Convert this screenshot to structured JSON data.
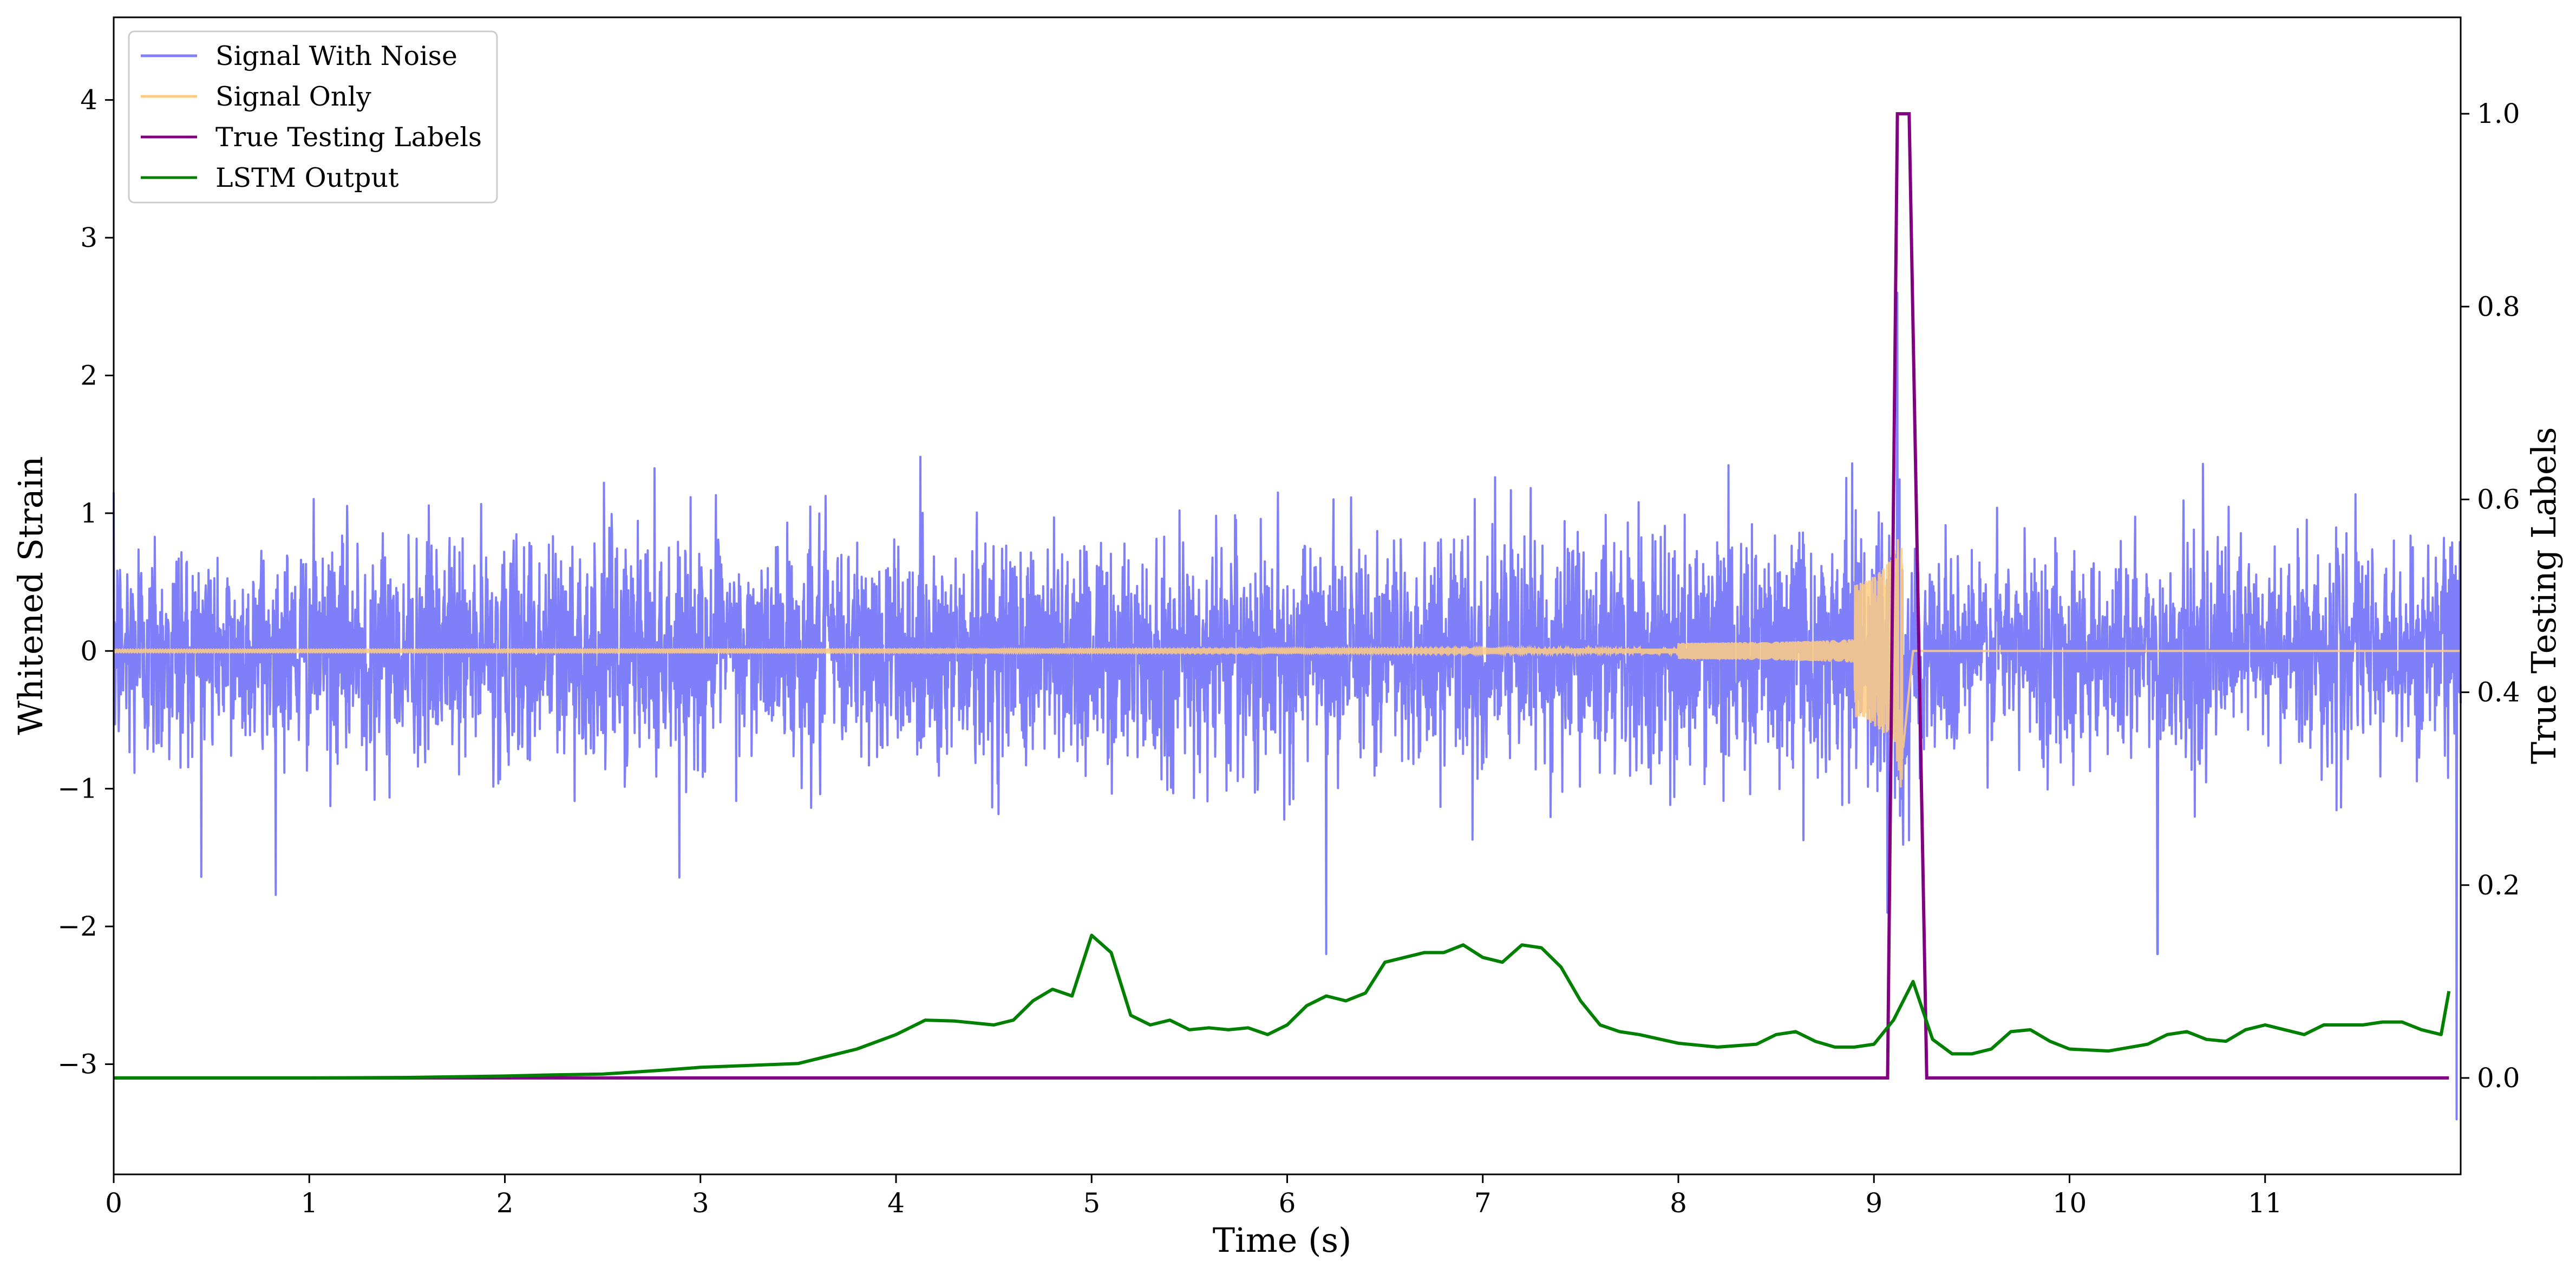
{
  "chart_data": {
    "type": "line",
    "title": "",
    "xlabel": "Time (s)",
    "ylabel": "Whitened Strain",
    "ylabel_right": "True Testing Labels",
    "xlim": [
      0,
      12
    ],
    "ylim": [
      -3.8,
      4.6
    ],
    "ylim_right": [
      -0.1,
      1.1
    ],
    "x_ticks": [
      0,
      1,
      2,
      3,
      4,
      5,
      6,
      7,
      8,
      9,
      10,
      11
    ],
    "y_ticks": [
      -3,
      -2,
      -1,
      0,
      1,
      2,
      3,
      4
    ],
    "y_ticks_right": [
      0.0,
      0.2,
      0.4,
      0.6,
      0.8,
      1.0
    ],
    "grid": false,
    "legend_position": "top-left",
    "series": [
      {
        "name": "Signal With Noise",
        "axis": "left",
        "color": "#7f7ffa",
        "noise_sigma": 0.5,
        "typical_peak": 1.8,
        "extreme_values": [
          {
            "x": 9.12,
            "y": 2.6
          },
          {
            "x": 9.07,
            "y": -1.9
          },
          {
            "x": 10.45,
            "y": -2.2
          },
          {
            "x": 6.2,
            "y": -2.2
          },
          {
            "x": 11.98,
            "y": -3.4
          }
        ]
      },
      {
        "name": "Signal Only",
        "axis": "left",
        "color": "#ffcc80",
        "chirp_start": 0.0,
        "merger_time": 9.15,
        "ringdown_end": 9.2,
        "peak_amplitude": 1.0
      },
      {
        "name": "True Testing Labels",
        "axis": "right",
        "color": "#800080",
        "x": [
          0.0,
          9.07,
          9.12,
          9.18,
          9.27,
          11.94
        ],
        "y": [
          0,
          0,
          1,
          1,
          0,
          0
        ]
      },
      {
        "name": "LSTM Output",
        "axis": "right",
        "color": "#008000",
        "x": [
          0.0,
          0.5,
          1.0,
          1.5,
          2.0,
          2.2,
          2.5,
          2.8,
          3.0,
          3.5,
          3.8,
          4.0,
          4.15,
          4.3,
          4.5,
          4.6,
          4.7,
          4.8,
          4.9,
          5.0,
          5.1,
          5.2,
          5.3,
          5.4,
          5.5,
          5.6,
          5.7,
          5.8,
          5.9,
          6.0,
          6.1,
          6.2,
          6.3,
          6.4,
          6.5,
          6.6,
          6.7,
          6.8,
          6.9,
          7.0,
          7.1,
          7.2,
          7.3,
          7.4,
          7.5,
          7.6,
          7.7,
          7.8,
          8.0,
          8.2,
          8.4,
          8.5,
          8.6,
          8.7,
          8.8,
          8.9,
          9.0,
          9.1,
          9.2,
          9.3,
          9.4,
          9.5,
          9.6,
          9.7,
          9.8,
          9.9,
          10.0,
          10.2,
          10.4,
          10.5,
          10.6,
          10.7,
          10.8,
          10.9,
          11.0,
          11.1,
          11.2,
          11.3,
          11.5,
          11.6,
          11.7,
          11.8,
          11.9,
          11.94
        ],
        "y": [
          0.0,
          0.0,
          0.0,
          0.0005,
          0.002,
          0.003,
          0.004,
          0.008,
          0.011,
          0.015,
          0.03,
          0.045,
          0.06,
          0.059,
          0.055,
          0.06,
          0.08,
          0.092,
          0.085,
          0.148,
          0.13,
          0.065,
          0.055,
          0.06,
          0.05,
          0.052,
          0.05,
          0.052,
          0.045,
          0.055,
          0.075,
          0.085,
          0.08,
          0.088,
          0.12,
          0.125,
          0.13,
          0.13,
          0.138,
          0.125,
          0.12,
          0.138,
          0.135,
          0.115,
          0.08,
          0.055,
          0.048,
          0.045,
          0.036,
          0.032,
          0.035,
          0.045,
          0.048,
          0.038,
          0.032,
          0.032,
          0.035,
          0.06,
          0.1,
          0.04,
          0.025,
          0.025,
          0.03,
          0.048,
          0.05,
          0.038,
          0.03,
          0.028,
          0.035,
          0.045,
          0.048,
          0.04,
          0.038,
          0.05,
          0.055,
          0.05,
          0.045,
          0.055,
          0.055,
          0.058,
          0.058,
          0.05,
          0.045,
          0.09
        ]
      }
    ]
  }
}
